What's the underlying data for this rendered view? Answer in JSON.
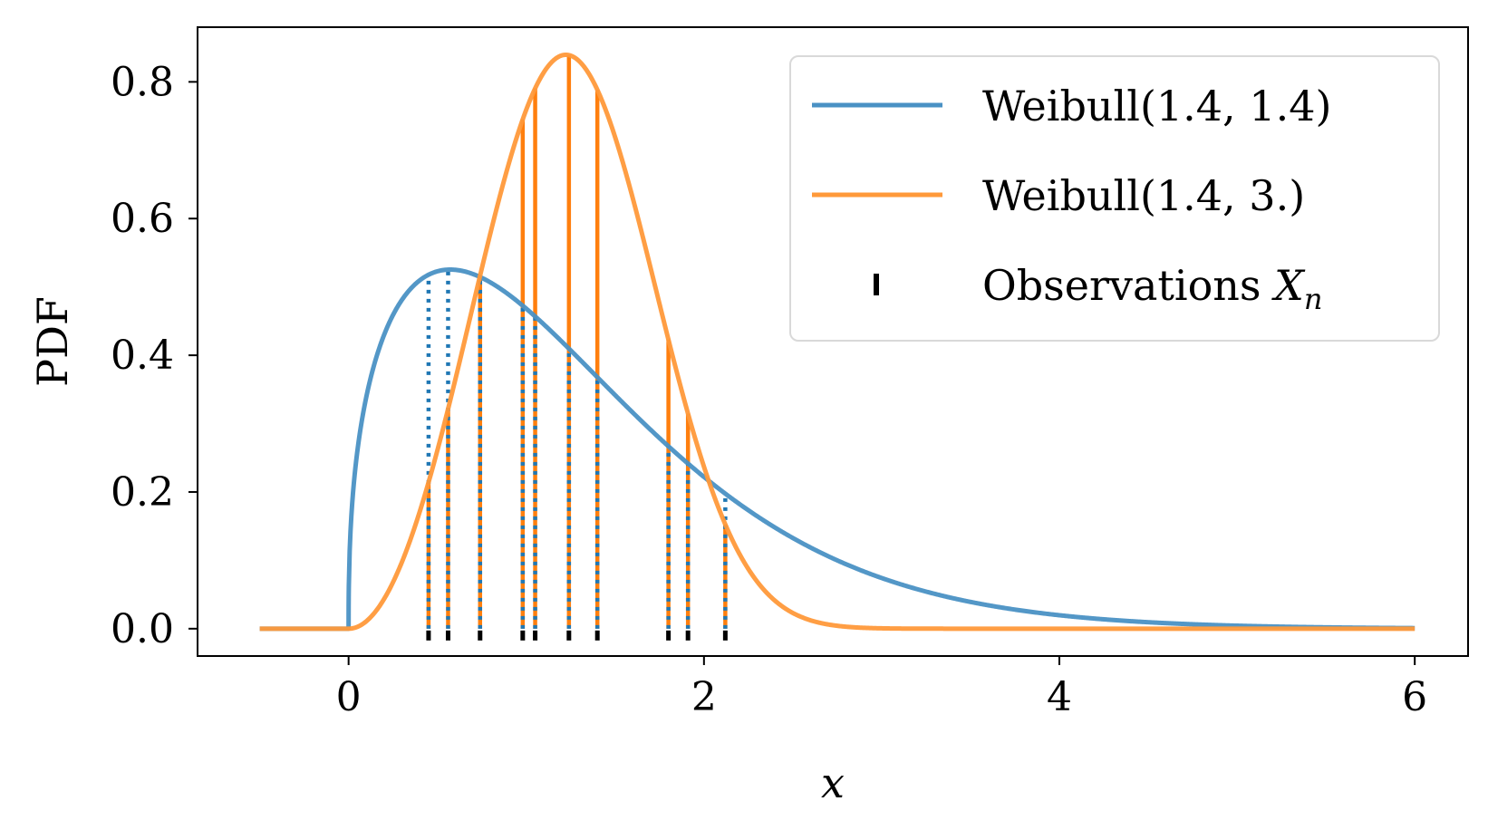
{
  "chart_data": {
    "type": "line",
    "xlabel": "x",
    "ylabel": "PDF",
    "xlim": [
      -0.85,
      6.3
    ],
    "ylim": [
      -0.04,
      0.88
    ],
    "xticks": [
      0,
      2,
      4,
      6
    ],
    "xtick_labels": [
      "0",
      "2",
      "4",
      "6"
    ],
    "yticks": [
      0.0,
      0.2,
      0.4,
      0.6,
      0.8
    ],
    "ytick_labels": [
      "0.0",
      "0.2",
      "0.4",
      "0.6",
      "0.8"
    ],
    "x_domain": [
      -0.5,
      6.0
    ],
    "grid": false,
    "legend_position": "top-right",
    "series": [
      {
        "name": "Weibull(1.4, 1.4)",
        "kind": "weibull_pdf",
        "shape": 1.4,
        "scale": 1.4,
        "color": "#4a91c4",
        "style": "solid"
      },
      {
        "name": "Weibull(1.4, 3.)",
        "kind": "weibull_pdf",
        "shape": 3.0,
        "scale": 1.4,
        "color": "#ff993a",
        "style": "solid"
      },
      {
        "name": "Observations X_n",
        "kind": "rug",
        "color": "#000000"
      }
    ],
    "observations": [
      0.45,
      0.56,
      0.74,
      0.98,
      1.05,
      1.24,
      1.4,
      1.8,
      1.91,
      2.12
    ],
    "stem_colors": {
      "dist1": "#1f77b4",
      "dist2": "#ff7f0e"
    }
  },
  "legend": {
    "label_1": "Weibull(1.4, 1.4)",
    "label_2": "Weibull(1.4, 3.)",
    "label_3_main": "Observations ",
    "label_3_var": "X",
    "label_3_sub": "n"
  }
}
